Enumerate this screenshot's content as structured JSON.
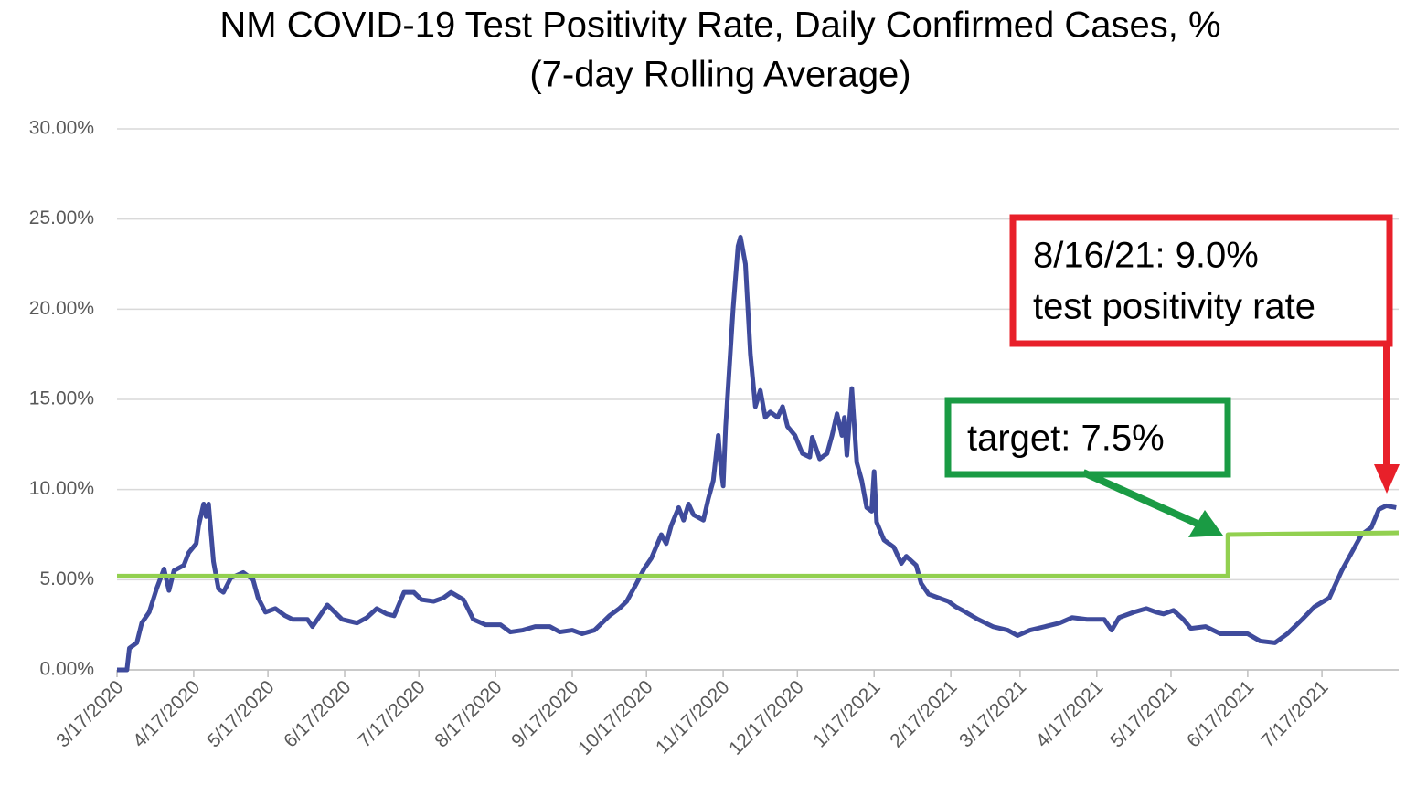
{
  "chart_data": {
    "type": "line",
    "title": "NM COVID-19 Test Positivity Rate, Daily Confirmed Cases, %",
    "subtitle": "(7-day Rolling Average)",
    "annotations": [
      "8/16/21: 9.0%",
      "test positivity rate",
      "target: 7.5%"
    ],
    "xlim": [
      "3/17/2020",
      "8/17/2021"
    ],
    "xticks": [
      "3/17/2020",
      "4/17/2020",
      "5/17/2020",
      "6/17/2020",
      "7/17/2020",
      "8/17/2020",
      "9/17/2020",
      "10/17/2020",
      "11/17/2020",
      "12/17/2020",
      "1/17/2021",
      "2/17/2021",
      "3/17/2021",
      "4/17/2021",
      "5/17/2021",
      "6/17/2021",
      "7/17/2021"
    ],
    "ylim": [
      0,
      30
    ],
    "yticks": [
      {
        "value": 0,
        "label": "0.00%"
      },
      {
        "value": 5,
        "label": "5.00%"
      },
      {
        "value": 10,
        "label": "10.00%"
      },
      {
        "value": 15,
        "label": "15.00%"
      },
      {
        "value": 20,
        "label": "20.00%"
      },
      {
        "value": 25,
        "label": "25.00%"
      },
      {
        "value": 30,
        "label": "30.00%"
      }
    ],
    "grid": true,
    "x": [
      "3/17/2020",
      "3/21/2020",
      "3/22/2020",
      "3/25/2020",
      "3/27/2020",
      "3/30/2020",
      "4/2/2020",
      "4/5/2020",
      "4/7/2020",
      "4/9/2020",
      "4/13/2020",
      "4/15/2020",
      "4/18/2020",
      "4/19/2020",
      "4/21/2020",
      "4/22/2020",
      "4/23/2020",
      "4/25/2020",
      "4/27/2020",
      "4/29/2020",
      "5/2/2020",
      "5/7/2020",
      "5/11/2020",
      "5/13/2020",
      "5/16/2020",
      "5/20/2020",
      "5/24/2020",
      "5/27/2020",
      "6/2/2020",
      "6/4/2020",
      "6/6/2020",
      "6/10/2020",
      "6/13/2020",
      "6/16/2020",
      "6/22/2020",
      "6/26/2020",
      "6/30/2020",
      "7/4/2020",
      "7/7/2020",
      "7/11/2020",
      "7/15/2020",
      "7/18/2020",
      "7/23/2020",
      "7/27/2020",
      "7/30/2020",
      "8/4/2020",
      "8/8/2020",
      "8/13/2020",
      "8/19/2020",
      "8/23/2020",
      "8/28/2020",
      "9/2/2020",
      "9/8/2020",
      "9/12/2020",
      "9/17/2020",
      "9/21/2020",
      "9/26/2020",
      "10/2/2020",
      "10/6/2020",
      "10/9/2020",
      "10/13/2020",
      "10/16/2020",
      "10/19/2020",
      "10/23/2020",
      "10/25/2020",
      "10/27/2020",
      "10/30/2020",
      "11/1/2020",
      "11/3/2020",
      "11/5/2020",
      "11/9/2020",
      "11/11/2020",
      "11/13/2020",
      "11/15/2020",
      "11/16/2020",
      "11/17/2020",
      "11/18/2020",
      "11/21/2020",
      "11/23/2020",
      "11/24/2020",
      "11/26/2020",
      "11/28/2020",
      "11/30/2020",
      "12/2/2020",
      "12/4/2020",
      "12/6/2020",
      "12/9/2020",
      "12/11/2020",
      "12/13/2020",
      "12/16/2020",
      "12/19/2020",
      "12/22/2020",
      "12/23/2020",
      "12/26/2020",
      "12/29/2020",
      "12/31/2020",
      "1/2/2021",
      "1/4/2021",
      "1/5/2021",
      "1/6/2021",
      "1/8/2021",
      "1/10/2021",
      "1/12/2021",
      "1/14/2021",
      "1/16/2021",
      "1/17/2021",
      "1/18/2021",
      "1/21/2021",
      "1/25/2021",
      "1/28/2021",
      "1/30/2021",
      "2/3/2021",
      "2/5/2021",
      "2/8/2021",
      "2/12/2021",
      "2/16/2021",
      "2/19/2021",
      "2/23/2021",
      "2/28/2021",
      "3/6/2021",
      "3/12/2021",
      "3/16/2021",
      "3/21/2021",
      "3/27/2021",
      "4/2/2021",
      "4/7/2021",
      "4/13/2021",
      "4/20/2021",
      "4/23/2021",
      "4/26/2021",
      "5/2/2021",
      "5/7/2021",
      "5/11/2021",
      "5/14/2021",
      "5/18/2021",
      "5/22/2021",
      "5/25/2021",
      "5/31/2021",
      "6/6/2021",
      "6/11/2021",
      "6/17/2021",
      "6/22/2021",
      "6/28/2021",
      "7/3/2021",
      "7/9/2021",
      "7/14/2021",
      "7/20/2021",
      "7/25/2021",
      "7/29/2021",
      "8/2/2021",
      "8/6/2021",
      "8/9/2021",
      "8/12/2021",
      "8/16/2021"
    ],
    "series": [
      {
        "color": "#3f4b9c",
        "values": [
          0,
          0,
          1.2,
          1.5,
          2.6,
          3.2,
          4.5,
          5.6,
          4.4,
          5.5,
          5.8,
          6.5,
          7.0,
          8.0,
          9.2,
          8.5,
          9.2,
          6.0,
          4.5,
          4.3,
          5.1,
          5.4,
          5.0,
          4.0,
          3.2,
          3.4,
          3.0,
          2.8,
          2.8,
          2.4,
          2.8,
          3.6,
          3.2,
          2.8,
          2.6,
          2.9,
          3.4,
          3.1,
          3.0,
          4.3,
          4.3,
          3.9,
          3.8,
          4.0,
          4.3,
          3.9,
          2.8,
          2.5,
          2.5,
          2.1,
          2.2,
          2.4,
          2.4,
          2.1,
          2.2,
          2.0,
          2.2,
          3.0,
          3.4,
          3.8,
          4.8,
          5.6,
          6.2,
          7.5,
          7.0,
          8.0,
          9.0,
          8.3,
          9.2,
          8.6,
          8.3,
          9.5,
          10.5,
          13.0,
          11.3,
          10.2,
          13.5,
          20.0,
          23.5,
          24.0,
          22.5,
          17.5,
          14.6,
          15.5,
          14.0,
          14.3,
          14.0,
          14.6,
          13.5,
          13.0,
          12.0,
          11.8,
          12.9,
          11.7,
          12.0,
          13.0,
          14.2,
          13.0,
          14.0,
          11.9,
          15.6,
          11.5,
          10.5,
          9.0,
          8.8,
          11.0,
          8.2,
          7.2,
          6.8,
          5.9,
          6.3,
          5.8,
          4.8,
          4.2,
          4.0,
          3.8,
          3.5,
          3.2,
          2.8,
          2.4,
          2.2,
          1.9,
          2.2,
          2.4,
          2.6,
          2.9,
          2.8,
          2.8,
          2.2,
          2.9,
          3.2,
          3.4,
          3.2,
          3.1,
          3.3,
          2.8,
          2.3,
          2.4,
          2.0,
          2.0,
          2.0,
          1.6,
          1.5,
          2.0,
          2.8,
          3.5,
          4.0,
          5.5,
          6.5,
          7.5,
          7.9,
          8.9,
          9.1,
          9.0
        ]
      }
    ],
    "target_line": {
      "color": "#92d050",
      "x": [
        "3/17/2020",
        "6/9/2021",
        "6/9/2021",
        "8/17/2021"
      ],
      "values": [
        5.2,
        5.2,
        7.5,
        7.6
      ]
    }
  }
}
